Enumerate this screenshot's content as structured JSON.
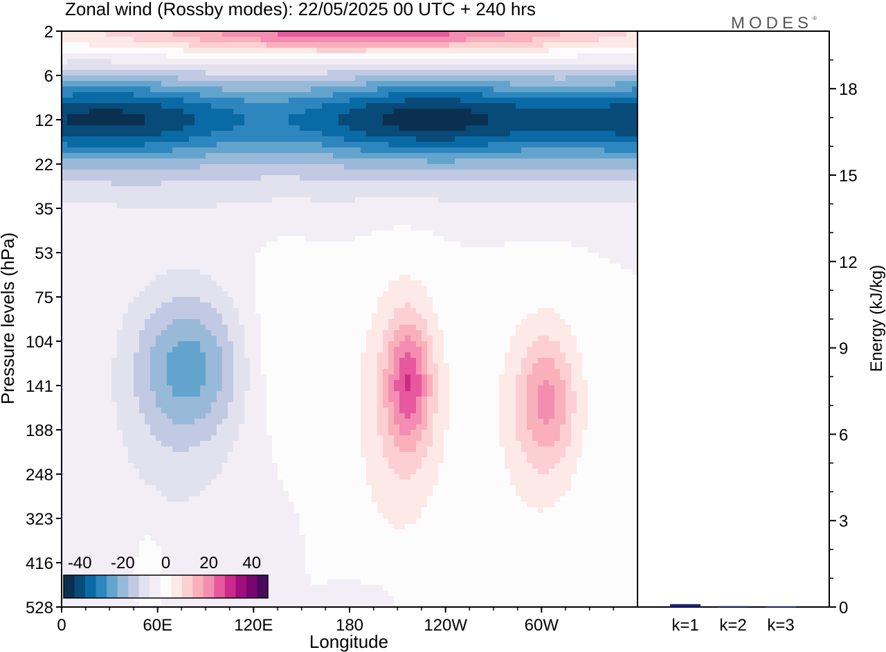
{
  "title": "Zonal wind (Rossby modes):  22/05/2025  00 UTC  + 240 hrs",
  "brand": "MODES",
  "brand_mark": "®",
  "chart_data": [
    {
      "type": "heatmap",
      "title": "Zonal wind (Rossby modes):  22/05/2025  00 UTC  + 240 hrs",
      "xlabel": "Longitude",
      "ylabel": "Pressure levels (hPa)",
      "x_ticks": [
        "0",
        "60E",
        "120E",
        "180",
        "120W",
        "60W"
      ],
      "y_ticks": [
        "2",
        "6",
        "12",
        "22",
        "35",
        "53",
        "75",
        "104",
        "141",
        "188",
        "248",
        "323",
        "416",
        "528"
      ],
      "y_scale": "log",
      "colorbar": {
        "labels": [
          "-40",
          "-20",
          "0",
          "20",
          "40"
        ],
        "levels": [
          -45,
          -40,
          -35,
          -30,
          -25,
          -20,
          -15,
          -10,
          -5,
          0,
          5,
          10,
          15,
          20,
          25,
          30,
          35,
          40,
          45
        ],
        "colors": [
          "#0b2f4f",
          "#084a78",
          "#0a6aa6",
          "#2e86bf",
          "#63a4cd",
          "#99b9d8",
          "#c1c9e3",
          "#e2e2ef",
          "#f3eef6",
          "#fdfcfd",
          "#fde9e6",
          "#fcd0d2",
          "#f9b0ba",
          "#f38db1",
          "#e7589e",
          "#cc2a8a",
          "#a00f7d",
          "#78066f",
          "#4a0a5e"
        ]
      },
      "features": [
        {
          "level": "2",
          "value": 20,
          "note": "strong westerlies at top, centered near 150E-150W"
        },
        {
          "level": "12",
          "value": -35,
          "note": "strong easterly band, stronger at 0-120E and 120W-60W"
        },
        {
          "level": "104",
          "value": -15,
          "note": "easterly core near 60E-100E"
        },
        {
          "level": "104",
          "value": 20,
          "note": "westerly core near 140W"
        },
        {
          "level": "104",
          "value": 15,
          "note": "westerly core near 50W"
        }
      ]
    },
    {
      "type": "bar",
      "ylabel": "Energy (kJ/kg)",
      "categories": [
        "k=1",
        "k=2",
        "k=3"
      ],
      "values": [
        0.1,
        0.03,
        0.02
      ],
      "y_ticks": [
        "0",
        "3",
        "6",
        "9",
        "12",
        "15",
        "18"
      ],
      "ylim": [
        0,
        20
      ],
      "colors": [
        "#1a237e",
        "#1a237e",
        "#1a237e"
      ]
    }
  ]
}
